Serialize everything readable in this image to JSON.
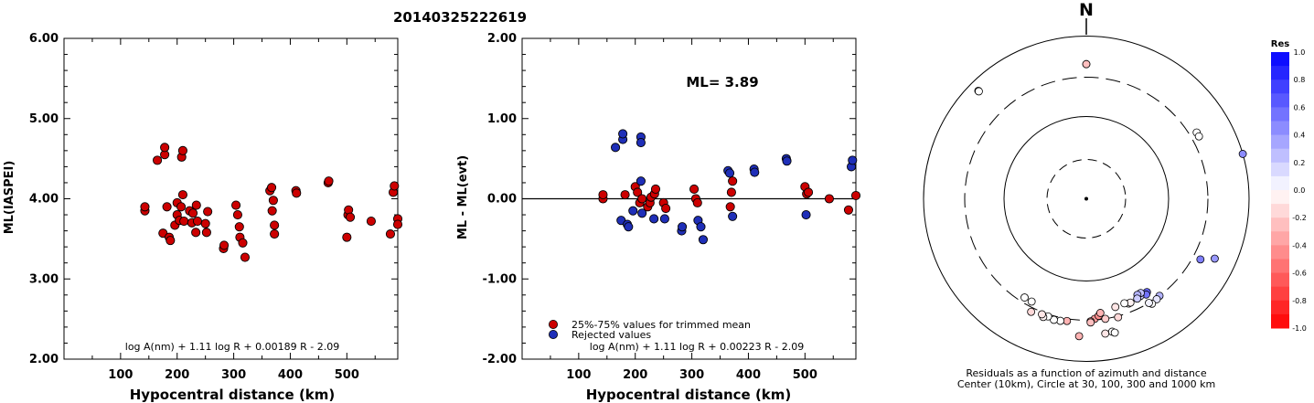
{
  "event_id": "20140325222619",
  "panel1": {
    "ylabel": "ML(IASPEI)",
    "xlabel": "Hypocentral distance (km)",
    "formula": "log A(nm) + 1.11 log R + 0.00189 R - 2.09",
    "yticks": [
      "2.00",
      "3.00",
      "4.00",
      "5.00",
      "6.00"
    ],
    "xticks": [
      "100",
      "200",
      "300",
      "400",
      "500"
    ]
  },
  "panel2": {
    "ylabel": "ML - ML(evt)",
    "xlabel": "Hypocentral distance (km)",
    "ml_label": "ML= 3.89",
    "formula": "log A(nm) + 1.11 log R + 0.00223 R - 2.09",
    "legend_used": "25%-75% values for trimmed mean",
    "legend_rejected": "Rejected values",
    "yticks": [
      "-2.00",
      "-1.00",
      "0.00",
      "1.00",
      "2.00"
    ],
    "xticks": [
      "100",
      "200",
      "300",
      "400",
      "500"
    ]
  },
  "panel3": {
    "north": "N",
    "caption1": "Residuals as a function of azimuth and distance",
    "caption2": "Center (10km), Circle at 30, 100, 300 and 1000 km",
    "colorbar_title": "Res",
    "colorbar_labels": [
      "1.0",
      "0.8",
      "0.6",
      "0.4",
      "0.2",
      "0.0",
      "-0.2",
      "-0.4",
      "-0.6",
      "-0.8",
      "-1.0"
    ]
  },
  "colors": {
    "used": "#cc0000",
    "rejected": "#1f2fb8",
    "positive": "#0000ff",
    "negative": "#ff0000"
  },
  "chart_data": [
    {
      "type": "scatter",
      "xlabel": "Hypocentral distance (km)",
      "ylabel": "ML(IASPEI)",
      "xlim": [
        0,
        590
      ],
      "ylim": [
        2.0,
        6.0
      ],
      "series": [
        {
          "points": [
            [
              143,
              3.85
            ],
            [
              143,
              3.9
            ],
            [
              165,
              4.48
            ],
            [
              175,
              3.57
            ],
            [
              178,
              4.55
            ],
            [
              178,
              4.64
            ],
            [
              182,
              3.9
            ],
            [
              186,
              3.52
            ],
            [
              188,
              3.48
            ],
            [
              196,
              3.67
            ],
            [
              200,
              3.8
            ],
            [
              200,
              3.95
            ],
            [
              204,
              3.73
            ],
            [
              207,
              3.9
            ],
            [
              208,
              4.52
            ],
            [
              210,
              4.6
            ],
            [
              210,
              4.05
            ],
            [
              212,
              3.72
            ],
            [
              222,
              3.85
            ],
            [
              226,
              3.7
            ],
            [
              228,
              3.82
            ],
            [
              233,
              3.58
            ],
            [
              234,
              3.92
            ],
            [
              236,
              3.72
            ],
            [
              250,
              3.69
            ],
            [
              252,
              3.58
            ],
            [
              254,
              3.84
            ],
            [
              282,
              3.38
            ],
            [
              283,
              3.42
            ],
            [
              304,
              3.92
            ],
            [
              307,
              3.8
            ],
            [
              310,
              3.65
            ],
            [
              311,
              3.52
            ],
            [
              316,
              3.45
            ],
            [
              320,
              3.27
            ],
            [
              364,
              4.1
            ],
            [
              367,
              4.14
            ],
            [
              368,
              3.85
            ],
            [
              370,
              3.98
            ],
            [
              372,
              3.67
            ],
            [
              372,
              3.56
            ],
            [
              410,
              4.1
            ],
            [
              411,
              4.07
            ],
            [
              467,
              4.2
            ],
            [
              468,
              4.22
            ],
            [
              500,
              3.52
            ],
            [
              502,
              3.8
            ],
            [
              503,
              3.86
            ],
            [
              506,
              3.77
            ],
            [
              543,
              3.72
            ],
            [
              577,
              3.56
            ],
            [
              582,
              4.08
            ],
            [
              584,
              4.16
            ],
            [
              590,
              3.75
            ],
            [
              590,
              3.68
            ]
          ]
        }
      ]
    },
    {
      "type": "scatter",
      "xlabel": "Hypocentral distance (km)",
      "ylabel": "ML - ML(evt)",
      "xlim": [
        0,
        590
      ],
      "ylim": [
        -2.0,
        2.0
      ],
      "series": [
        {
          "name": "25%-75% values for trimmed mean",
          "points": [
            [
              143,
              0.0
            ],
            [
              143,
              0.05
            ],
            [
              182,
              0.05
            ],
            [
              200,
              0.15
            ],
            [
              204,
              0.08
            ],
            [
              208,
              -0.05
            ],
            [
              212,
              0.0
            ],
            [
              222,
              -0.1
            ],
            [
              226,
              -0.05
            ],
            [
              228,
              0.02
            ],
            [
              234,
              0.06
            ],
            [
              236,
              0.12
            ],
            [
              250,
              -0.05
            ],
            [
              254,
              -0.12
            ],
            [
              304,
              0.12
            ],
            [
              307,
              0.0
            ],
            [
              310,
              -0.05
            ],
            [
              368,
              -0.1
            ],
            [
              370,
              0.08
            ],
            [
              372,
              0.22
            ],
            [
              500,
              0.15
            ],
            [
              503,
              0.06
            ],
            [
              506,
              0.08
            ],
            [
              543,
              0.0
            ],
            [
              577,
              -0.14
            ],
            [
              590,
              0.04
            ]
          ]
        },
        {
          "name": "Rejected values",
          "points": [
            [
              165,
              0.64
            ],
            [
              175,
              -0.27
            ],
            [
              178,
              0.74
            ],
            [
              178,
              0.81
            ],
            [
              186,
              -0.32
            ],
            [
              188,
              -0.35
            ],
            [
              196,
              -0.15
            ],
            [
              210,
              0.77
            ],
            [
              210,
              0.7
            ],
            [
              210,
              0.22
            ],
            [
              212,
              -0.18
            ],
            [
              233,
              -0.25
            ],
            [
              252,
              -0.25
            ],
            [
              282,
              -0.4
            ],
            [
              283,
              -0.35
            ],
            [
              311,
              -0.27
            ],
            [
              316,
              -0.35
            ],
            [
              320,
              -0.51
            ],
            [
              364,
              0.35
            ],
            [
              367,
              0.32
            ],
            [
              372,
              -0.22
            ],
            [
              410,
              0.37
            ],
            [
              411,
              0.33
            ],
            [
              467,
              0.5
            ],
            [
              468,
              0.47
            ],
            [
              502,
              -0.2
            ],
            [
              582,
              0.4
            ],
            [
              584,
              0.48
            ]
          ]
        }
      ]
    },
    {
      "type": "scatter",
      "title": "Residuals as a function of azimuth and distance",
      "subtitle": "Center (10km), Circle at 30, 100, 300 and 1000 km",
      "rings_km": [
        30,
        100,
        300,
        1000
      ],
      "color_scale": "Res",
      "scale_range": [
        -1.0,
        1.0
      ],
      "series": [
        {
          "points": [
            {
              "az": 0,
              "dist_km": 440,
              "res": 0.0
            },
            {
              "az": 0,
              "dist_km": 440,
              "res": -0.25
            },
            {
              "az": -45,
              "dist_km": 745,
              "res": 0.0
            },
            {
              "az": -45,
              "dist_km": 730,
              "res": 0.0
            },
            {
              "az": 59,
              "dist_km": 370,
              "res": 0.0
            },
            {
              "az": 61,
              "dist_km": 370,
              "res": 0.0
            },
            {
              "az": 74,
              "dist_km": 1010,
              "res": 0.45
            },
            {
              "az": 118,
              "dist_km": 375,
              "res": 0.5
            },
            {
              "az": 115,
              "dist_km": 540,
              "res": 0.4
            },
            {
              "az": 143,
              "dist_km": 300,
              "res": 0.3
            },
            {
              "az": 145,
              "dist_km": 310,
              "res": 0.1
            },
            {
              "az": 148,
              "dist_km": 320,
              "res": 0.0
            },
            {
              "az": 149,
              "dist_km": 300,
              "res": 0.05
            },
            {
              "az": 147,
              "dist_km": 225,
              "res": 0.6
            },
            {
              "az": 148,
              "dist_km": 236,
              "res": 0.55
            },
            {
              "az": 151,
              "dist_km": 225,
              "res": 0.2
            },
            {
              "az": 150,
              "dist_km": 210,
              "res": 0.25
            },
            {
              "az": 152,
              "dist_km": 210,
              "res": 0.3
            },
            {
              "az": 153,
              "dist_km": 230,
              "res": 0.2
            },
            {
              "az": 158,
              "dist_km": 236,
              "res": 0.0
            },
            {
              "az": 157,
              "dist_km": 235,
              "res": -0.05
            },
            {
              "az": 165,
              "dist_km": 230,
              "res": -0.1
            },
            {
              "az": 160,
              "dist_km": 225,
              "res": 0.0
            },
            {
              "az": 176,
              "dist_km": 290,
              "res": -0.4
            },
            {
              "az": 174,
              "dist_km": 270,
              "res": -0.45
            },
            {
              "az": 173,
              "dist_km": 250,
              "res": -0.3
            },
            {
              "az": 178,
              "dist_km": 310,
              "res": -0.35
            },
            {
              "az": 178,
              "dist_km": 320,
              "res": -0.25
            },
            {
              "az": 171,
              "dist_km": 300,
              "res": -0.2
            },
            {
              "az": 165,
              "dist_km": 310,
              "res": -0.15
            },
            {
              "az": 169,
              "dist_km": 450,
              "res": 0.0
            },
            {
              "az": 168,
              "dist_km": 470,
              "res": 0.0
            },
            {
              "az": 172,
              "dist_km": 460,
              "res": -0.1
            },
            {
              "az": 183,
              "dist_km": 480,
              "res": -0.3
            },
            {
              "az": 189,
              "dist_km": 320,
              "res": -0.3
            },
            {
              "az": 192,
              "dist_km": 330,
              "res": 0.0
            },
            {
              "az": 195,
              "dist_km": 335,
              "res": 0.0
            },
            {
              "az": 198,
              "dist_km": 320,
              "res": 0.0
            },
            {
              "az": 200,
              "dist_km": 340,
              "res": -0.05
            },
            {
              "az": 201,
              "dist_km": 320,
              "res": -0.1
            },
            {
              "az": 206,
              "dist_km": 340,
              "res": -0.15
            },
            {
              "az": 208,
              "dist_km": 260,
              "res": 0.0
            },
            {
              "az": 212,
              "dist_km": 260,
              "res": 0.0
            }
          ]
        }
      ]
    }
  ]
}
